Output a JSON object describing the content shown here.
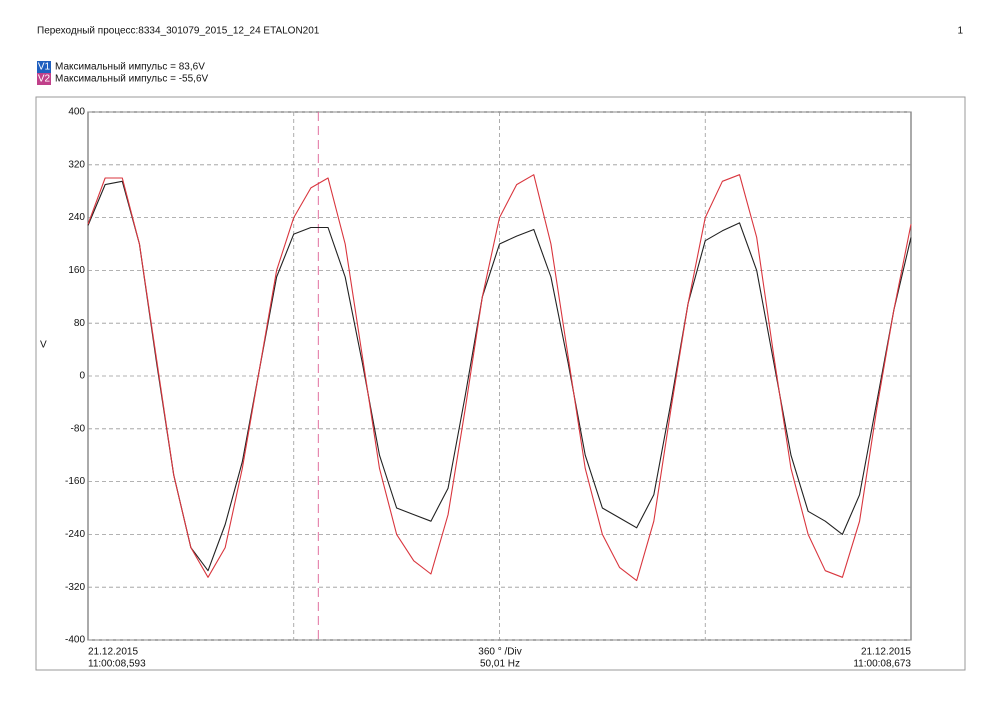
{
  "chart_data": {
    "type": "line",
    "title": "Переходный процесс:8334_301079_2015_12_24 ETALON201",
    "page_number": "1",
    "y_label": "V",
    "x_axis": {
      "start": [
        "21.12.2015",
        "11:00:08,593"
      ],
      "scale": "360 ° /Div",
      "frequency": "50,01 Hz",
      "end": [
        "21.12.2015",
        "11:00:08,673"
      ]
    },
    "x": [
      0,
      30,
      60,
      90,
      120,
      150,
      180,
      210,
      240,
      270,
      300,
      330,
      360,
      390,
      420,
      450,
      480,
      510,
      540,
      570,
      600,
      630,
      660,
      690,
      720,
      750,
      780,
      810,
      840,
      870,
      900,
      930,
      960,
      990,
      1020,
      1050,
      1080,
      1110,
      1140,
      1170,
      1200,
      1230,
      1260,
      1290,
      1320,
      1350,
      1380,
      1410,
      1440
    ],
    "series": [
      {
        "name": "V1",
        "legend_text": "Максимальный импульс = 83,6V",
        "legend_color": "#1f5fbf",
        "color": "#222222",
        "values": [
          228,
          290,
          295,
          200,
          20,
          -150,
          -260,
          -295,
          -225,
          -130,
          10,
          150,
          215,
          225,
          225,
          150,
          20,
          -120,
          -200,
          -210,
          -220,
          -170,
          -30,
          120,
          200,
          212,
          222,
          150,
          20,
          -120,
          -200,
          -215,
          -230,
          -180,
          -40,
          110,
          205,
          220,
          232,
          160,
          20,
          -120,
          -205,
          -220,
          -240,
          -180,
          -40,
          100,
          210
        ]
      },
      {
        "name": "V2",
        "legend_text": "Максимальный импульс = -55,6V",
        "legend_color": "#c0408a",
        "color": "#d9363e",
        "values": [
          230,
          300,
          300,
          200,
          25,
          -150,
          -260,
          -305,
          -260,
          -140,
          10,
          160,
          240,
          285,
          300,
          200,
          30,
          -140,
          -240,
          -280,
          -300,
          -210,
          -50,
          120,
          240,
          290,
          305,
          200,
          30,
          -140,
          -240,
          -290,
          -310,
          -220,
          -50,
          110,
          240,
          295,
          305,
          210,
          30,
          -140,
          -240,
          -295,
          -305,
          -220,
          -50,
          100,
          230
        ]
      }
    ],
    "cursor_x": 403,
    "xlim": [
      0,
      1440
    ],
    "xticks": [
      360,
      720,
      1080
    ],
    "ylim": [
      -400,
      400
    ],
    "yticks": [
      -400,
      -320,
      -240,
      -160,
      -80,
      0,
      80,
      160,
      240,
      320,
      400
    ],
    "grid": true
  }
}
